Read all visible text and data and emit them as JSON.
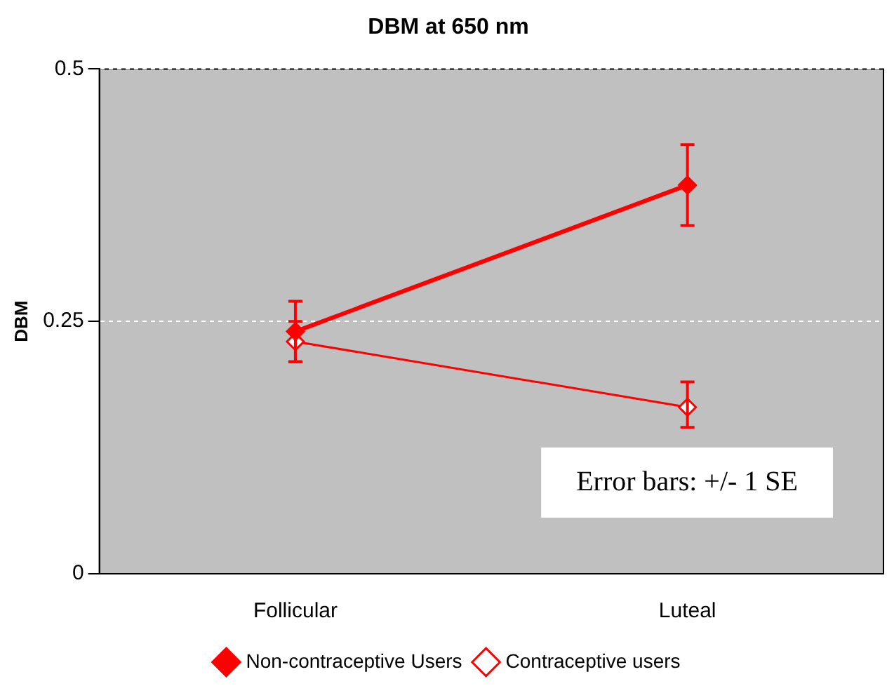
{
  "chart_data": {
    "type": "line",
    "title": "DBM at 650 nm",
    "ylabel": "DBM",
    "categories": [
      "Follicular",
      "Luteal"
    ],
    "series": [
      {
        "name": "Non-contraceptive Users",
        "color": "#ff0000",
        "values": [
          0.24,
          0.385
        ],
        "errors": [
          [
            0.21,
            0.27
          ],
          [
            0.345,
            0.425
          ]
        ]
      },
      {
        "name": "Contraceptive users",
        "color": "#ff0000",
        "values": [
          0.23,
          0.165
        ],
        "errors": [
          [
            0.21,
            0.25
          ],
          [
            0.145,
            0.19
          ]
        ]
      }
    ],
    "ylim": [
      0,
      0.5
    ],
    "yticks": [
      0,
      0.25,
      0.5
    ],
    "grid": "y",
    "legend": "bottom",
    "marker": "diamond",
    "annotations": [
      "Error bars: +/- 1 SE"
    ]
  }
}
